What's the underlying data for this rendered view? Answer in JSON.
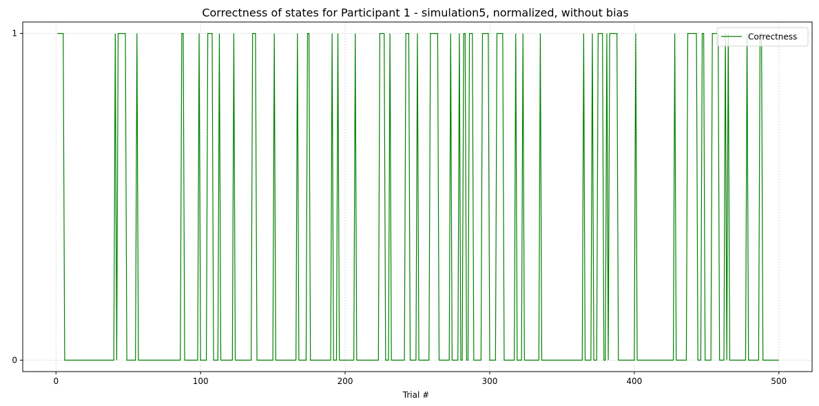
{
  "chart_data": {
    "type": "line",
    "title": "Correctness of states for Participant 1 - simulation5, normalized, without bias",
    "xlabel": "Trial #",
    "ylabel": "",
    "xlim": [
      -23,
      523
    ],
    "ylim": [
      -0.035,
      1.035
    ],
    "xticks": [
      0,
      100,
      200,
      300,
      400,
      500
    ],
    "yticks": [
      0,
      1
    ],
    "grid": true,
    "legend_position": "top-right",
    "series": [
      {
        "name": "Correctness",
        "color": "#008000",
        "runs_correct": [
          [
            1,
            5
          ],
          [
            41,
            41
          ],
          [
            43,
            48
          ],
          [
            56,
            56
          ],
          [
            87,
            88
          ],
          [
            99,
            99
          ],
          [
            105,
            108
          ],
          [
            113,
            113
          ],
          [
            123,
            123
          ],
          [
            136,
            138
          ],
          [
            151,
            151
          ],
          [
            167,
            167
          ],
          [
            174,
            175
          ],
          [
            191,
            191
          ],
          [
            195,
            195
          ],
          [
            207,
            207
          ],
          [
            224,
            227
          ],
          [
            231,
            231
          ],
          [
            242,
            244
          ],
          [
            250,
            250
          ],
          [
            259,
            264
          ],
          [
            273,
            273
          ],
          [
            279,
            279
          ],
          [
            282,
            283
          ],
          [
            286,
            288
          ],
          [
            295,
            299
          ],
          [
            305,
            309
          ],
          [
            318,
            318
          ],
          [
            323,
            323
          ],
          [
            335,
            335
          ],
          [
            365,
            365
          ],
          [
            371,
            371
          ],
          [
            375,
            378
          ],
          [
            381,
            381
          ],
          [
            383,
            388
          ],
          [
            401,
            401
          ],
          [
            428,
            428
          ],
          [
            437,
            443
          ],
          [
            447,
            448
          ],
          [
            454,
            458
          ],
          [
            463,
            463
          ],
          [
            465,
            465
          ],
          [
            478,
            478
          ],
          [
            487,
            488
          ]
        ],
        "n_trials": 500
      }
    ]
  }
}
